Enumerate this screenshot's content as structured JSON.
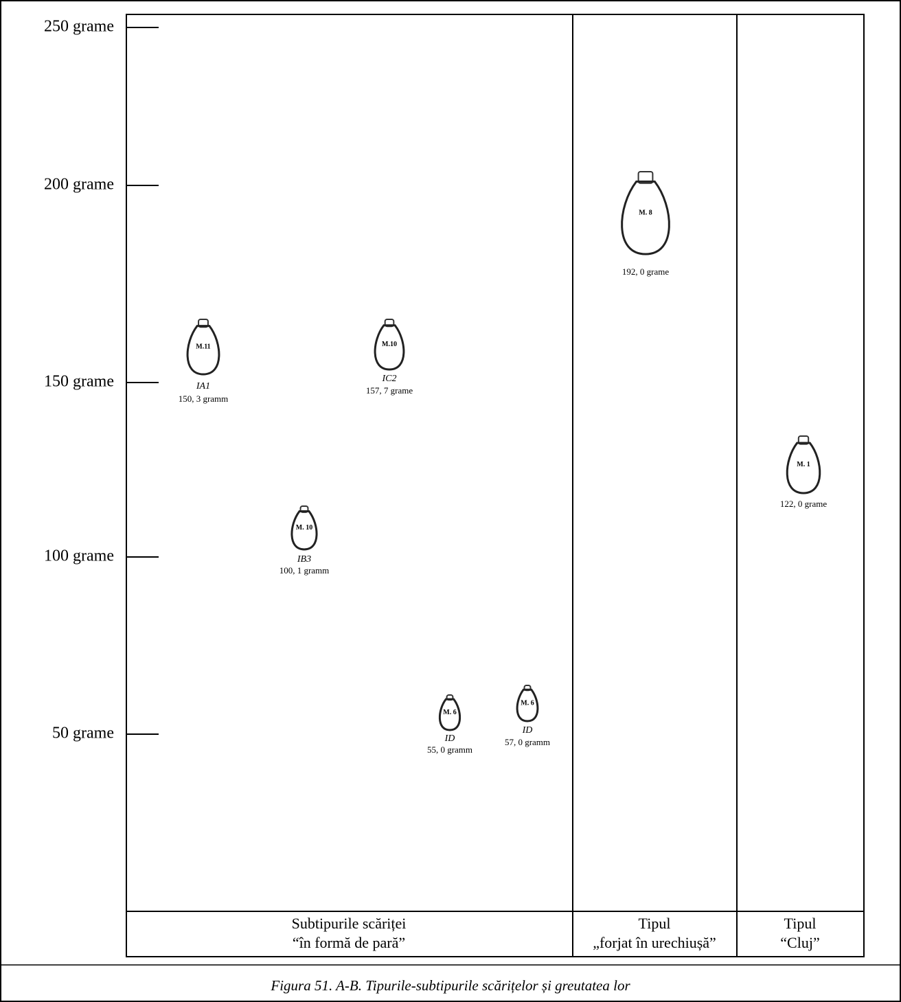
{
  "axis": {
    "ticks": [
      "250 grame",
      "200 grame",
      "150 grame",
      "100 grame",
      "50 grame"
    ]
  },
  "items": [
    {
      "mark": "M.11",
      "subtype": "IA1",
      "weight": "150, 3 gramm"
    },
    {
      "mark": "M.10",
      "subtype": "IC2",
      "weight": "157, 7 grame"
    },
    {
      "mark": "M. 10",
      "subtype": "IB3",
      "weight": "100, 1 gramm"
    },
    {
      "mark": "M. 6",
      "subtype": "ID",
      "weight": "55, 0 gramm"
    },
    {
      "mark": "M. 6",
      "subtype": "ID",
      "weight": "57, 0 gramm"
    },
    {
      "mark": "M. 8",
      "weight": "192, 0 grame"
    },
    {
      "mark": "M. 1",
      "weight": "122, 0 grame"
    }
  ],
  "columns": [
    {
      "lines": [
        "Subtipurile scăriței",
        "“în formă de pară”"
      ]
    },
    {
      "lines": [
        "Tipul",
        "„forjat în urechiușă”"
      ]
    },
    {
      "lines": [
        "Tipul",
        "“Cluj”"
      ]
    }
  ],
  "caption": "Figura 51. A-B. Tipurile-subtipurile scărițelor și greutatea lor"
}
